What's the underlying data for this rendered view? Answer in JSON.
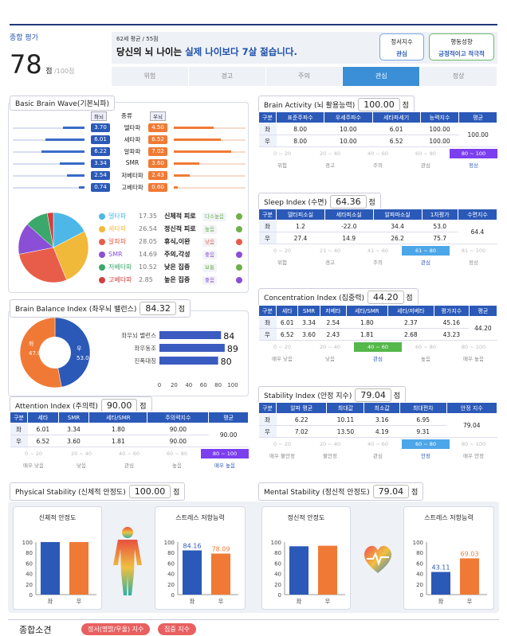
{
  "summary": {
    "label": "종합 평가",
    "score": "78",
    "unit": "점",
    "total": "/100점",
    "age_note": "62세 평균 / 55점",
    "headline_a": "당신의 뇌 나이는 ",
    "headline_b": "실제 나이보다 7살 젊습니다.",
    "btn1_a": "정서지수",
    "btn1_b": "관심",
    "btn2_a": "행동성향",
    "btn2_b": "긍정적이고 적극적",
    "tabs": [
      "위험",
      "경고",
      "주의",
      "관심",
      "정상"
    ],
    "active_tab": 3
  },
  "wave": {
    "title": "Basic Brain Wave(기본뇌파)",
    "head": [
      "좌뇌",
      "종류",
      "우뇌"
    ],
    "rows": [
      {
        "l": "3.70",
        "name": "델타파",
        "r": "4.50",
        "lf": 0.3,
        "rf": 0.55
      },
      {
        "l": "6.01",
        "name": "세타파",
        "r": "6.52",
        "lf": 0.55,
        "rf": 0.65
      },
      {
        "l": "6.22",
        "name": "알파파",
        "r": "7.02",
        "lf": 0.6,
        "rf": 0.8
      },
      {
        "l": "3.34",
        "name": "SMR",
        "r": "3.60",
        "lf": 0.35,
        "rf": 0.35
      },
      {
        "l": "2.54",
        "name": "저베타파",
        "r": "2.43",
        "lf": 0.25,
        "rf": 0.22
      },
      {
        "l": "0.74",
        "name": "고베타파",
        "r": "0.60",
        "lf": 0.08,
        "rf": 0.06
      }
    ],
    "legend": [
      {
        "name": "델타파",
        "val": "17.35",
        "desc": "신체적 피로",
        "tag": "다소높음",
        "color": "#4db8e8",
        "tagc": "#6fb04a"
      },
      {
        "name": "세타파",
        "val": "26.54",
        "desc": "정신적 피로",
        "tag": "높음",
        "color": "#f0b93a",
        "tagc": "#6fb04a"
      },
      {
        "name": "알파파",
        "val": "28.05",
        "desc": "휴식,이완",
        "tag": "낮음",
        "color": "#e85d4a",
        "tagc": "#e85d4a"
      },
      {
        "name": "SMR",
        "val": "14.69",
        "desc": "주의,각성",
        "tag": "좋음",
        "color": "#8a4fd6",
        "tagc": "#8a4fd6"
      },
      {
        "name": "저베타파",
        "val": "10.52",
        "desc": "낮은 집중",
        "tag": "보통",
        "color": "#3aa86a",
        "tagc": "#6fb04a"
      },
      {
        "name": "고베타파",
        "val": "2.85",
        "desc": "높은 집중",
        "tag": "좋음",
        "color": "#d04040",
        "tagc": "#8a4fd6"
      }
    ]
  },
  "activity": {
    "title": "Brain Activity (뇌 활용능력)",
    "score": "100.00",
    "unit": "점",
    "head": [
      "구분",
      "표준주파수",
      "우세주파수",
      "세타파세기",
      "능력지수",
      "평균"
    ],
    "rows": [
      [
        "좌",
        "8.00",
        "10.00",
        "6.01",
        "100.00"
      ],
      [
        "우",
        "8.00",
        "10.00",
        "6.52",
        "100.00"
      ]
    ],
    "avg": "100.00",
    "scale": [
      "0 ~ 20",
      "20 ~ 40",
      "40 ~ 60",
      "60 ~ 80",
      "80 ~ 100"
    ],
    "labels": [
      "위험",
      "경고",
      "주의",
      "관심",
      "정상"
    ]
  },
  "sleep": {
    "title": "Sleep Index (수면)",
    "score": "64.36",
    "unit": "점",
    "head": [
      "구분",
      "델타피소실",
      "세타피소실",
      "알파파소실",
      "1차평가",
      "수면지수"
    ],
    "rows": [
      [
        "좌",
        "1.2",
        "-22.0",
        "34.4",
        "53.0"
      ],
      [
        "우",
        "27.4",
        "14.9",
        "26.2",
        "75.7"
      ]
    ],
    "avg": "64.4",
    "scale": [
      "0 ~ 20",
      "21 ~ 40",
      "41 ~ 60",
      "61 ~ 80",
      "81 ~ 100"
    ],
    "labels": [
      "위험",
      "경고",
      "주의",
      "관심",
      "정상"
    ]
  },
  "balance": {
    "title": "Brain Balance Index (좌우뇌 밸런스)",
    "score": "84.32",
    "unit": "점",
    "left_label": "좌",
    "left_val": "47.0",
    "right_label": "우",
    "right_val": "53.0",
    "bars": [
      {
        "name": "좌우뇌 밸런스",
        "val": 84
      },
      {
        "name": "좌우동조",
        "val": 89
      },
      {
        "name": "진폭대칭",
        "val": 80
      }
    ],
    "ticks": [
      "0",
      "20",
      "40",
      "60",
      "80",
      "100"
    ]
  },
  "concentration": {
    "title": "Concentration Index (집중력)",
    "score": "44.20",
    "unit": "점",
    "head": [
      "구분",
      "세타",
      "SMR",
      "저베타",
      "세타/SMR",
      "세타/저베타",
      "평가지수",
      "평균"
    ],
    "rows": [
      [
        "좌",
        "6.01",
        "3.34",
        "2.54",
        "1.80",
        "2.37",
        "45.16"
      ],
      [
        "우",
        "6.52",
        "3.60",
        "2.43",
        "1.81",
        "2.68",
        "43.23"
      ]
    ],
    "avg": "44.20",
    "scale": [
      "0 ~ 20",
      "20 ~ 40",
      "40 ~ 60",
      "60 ~ 80",
      "80 ~ 100"
    ],
    "labels": [
      "매우 낮음",
      "낮음",
      "관심",
      "높음",
      "매우 높음"
    ]
  },
  "attention": {
    "title": "Attention Index (주의력)",
    "score": "90.00",
    "unit": "점",
    "head": [
      "구분",
      "세타",
      "SMR",
      "세타/SMR",
      "주의력지수",
      "평균"
    ],
    "rows": [
      [
        "좌",
        "6.01",
        "3.34",
        "1.80",
        "90.00"
      ],
      [
        "우",
        "6.52",
        "3.60",
        "1.81",
        "90.00"
      ]
    ],
    "avg": "90.00",
    "scale": [
      "0 ~ 20",
      "20 ~ 40",
      "40 ~ 60",
      "60 ~ 80",
      "80 ~ 100"
    ],
    "labels": [
      "매우 낮음",
      "낮음",
      "관심",
      "높음",
      "매우 높음"
    ]
  },
  "stability": {
    "title": "Stability Index (안정 지수)",
    "score": "79.04",
    "unit": "점",
    "head": [
      "구분",
      "알파 평균",
      "최대값",
      "최소값",
      "최대편차",
      "안정 지수"
    ],
    "rows": [
      [
        "좌",
        "6.22",
        "10.11",
        "3.16",
        "6.95"
      ],
      [
        "우",
        "7.02",
        "13.50",
        "4.19",
        "9.31"
      ]
    ],
    "avg": "79.04",
    "scale": [
      "0 ~ 20",
      "20 ~ 40",
      "40 ~ 60",
      "60 ~ 80",
      "80 ~ 100"
    ],
    "labels": [
      "매우 불안정",
      "불안정",
      "관심",
      "안정",
      "매우 안정"
    ]
  },
  "physical": {
    "title": "Physical Stability (신체적 안정도)",
    "score": "100.00",
    "unit": "점",
    "c1_title": "신체적 안정도",
    "c2_title": "스트레스 저항능력",
    "c2_vals": [
      "84.16",
      "78.09"
    ]
  },
  "mental": {
    "title": "Mental Stability (정신적 안정도)",
    "score": "79.04",
    "unit": "점",
    "c1_title": "정신적 안정도",
    "c2_title": "스트레스 저항능력",
    "c2_vals": [
      "43.11",
      "69.03"
    ]
  },
  "axis": {
    "ticks": [
      "100",
      "80",
      "60",
      "40",
      "20",
      "0"
    ],
    "cats": [
      "좌",
      "우"
    ]
  },
  "chart_data": [
    {
      "type": "pie",
      "title": "",
      "categories": [
        "델타파",
        "세타파",
        "알파파",
        "SMR",
        "저베타파",
        "고베타파"
      ],
      "values": [
        17.35,
        26.54,
        28.05,
        14.69,
        10.52,
        2.85
      ]
    },
    {
      "type": "pie",
      "title": "",
      "categories": [
        "좌",
        "우"
      ],
      "values": [
        47.0,
        53.0
      ]
    },
    {
      "type": "bar",
      "title": "",
      "categories": [
        "좌우뇌 밸런스",
        "좌우동조",
        "진폭대칭"
      ],
      "values": [
        84,
        89,
        80
      ],
      "xlim": [
        0,
        100
      ]
    },
    {
      "type": "bar",
      "title": "신체적 안정도",
      "categories": [
        "좌",
        "우"
      ],
      "values": [
        100,
        100
      ],
      "ylim": [
        0,
        100
      ]
    },
    {
      "type": "bar",
      "title": "스트레스 저항능력",
      "categories": [
        "좌",
        "우"
      ],
      "values": [
        84.16,
        78.09
      ],
      "ylim": [
        0,
        100
      ]
    },
    {
      "type": "bar",
      "title": "정신적 안정도",
      "categories": [
        "좌",
        "우"
      ],
      "values": [
        92,
        93
      ],
      "ylim": [
        0,
        100
      ]
    },
    {
      "type": "bar",
      "title": "스트레스 저항능력",
      "categories": [
        "좌",
        "우"
      ],
      "values": [
        43.11,
        69.03
      ],
      "ylim": [
        0,
        100
      ]
    }
  ],
  "footer": {
    "title": "종합소견",
    "tag1": "정서(명밝/우울) 지수",
    "tag2": "집중 지수"
  }
}
